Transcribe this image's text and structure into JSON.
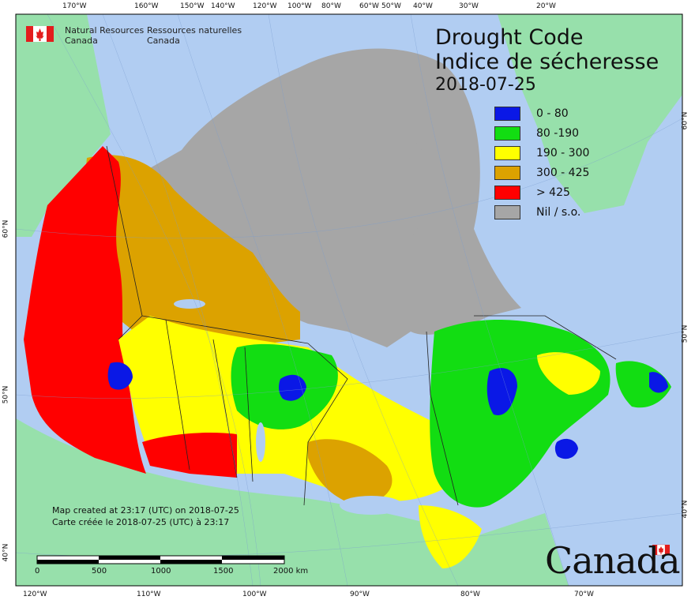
{
  "title": {
    "en": "Drought Code",
    "fr": "Indice de sécheresse",
    "date": "2018-07-25"
  },
  "legend": [
    {
      "label": "0 - 80",
      "color": "#0a18e6"
    },
    {
      "label": "80 -190",
      "color": "#12dd12"
    },
    {
      "label": "190 - 300",
      "color": "#ffff00"
    },
    {
      "label": "300 - 425",
      "color": "#dca200"
    },
    {
      "label": "> 425",
      "color": "#ff0000"
    },
    {
      "label": "Nil / s.o.",
      "color": "#a6a6a6"
    }
  ],
  "agency": {
    "en_line1": "Natural Resources",
    "en_line2": "Canada",
    "fr_line1": "Ressources naturelles",
    "fr_line2": "Canada"
  },
  "credit": {
    "en": "Map created at 23:17 (UTC) on 2018-07-25",
    "fr": "Carte créée le 2018-07-25 (UTC) à 23:17"
  },
  "wordmark": "Canada",
  "scale_bar": {
    "labels": [
      "0",
      "500",
      "1000",
      "1500",
      "2000 km"
    ]
  },
  "graticule": {
    "top": [
      "170°W",
      "160°W",
      "150°W",
      "140°W",
      "120°W",
      "100°W",
      "80°W",
      "60°W",
      "50°W",
      "40°W",
      "30°W",
      "20°W"
    ],
    "bottom": [
      "120°W",
      "110°W",
      "100°W",
      "90°W",
      "80°W",
      "70°W"
    ],
    "left": [
      "60°N",
      "50°N",
      "40°N"
    ],
    "right": [
      "60°N",
      "50°N",
      "40°N"
    ]
  },
  "colors": {
    "ocean": "#b1cdf2",
    "foreign_land": "#97e0ab",
    "nodata": "#a6a6a6",
    "frame": "#000000"
  }
}
